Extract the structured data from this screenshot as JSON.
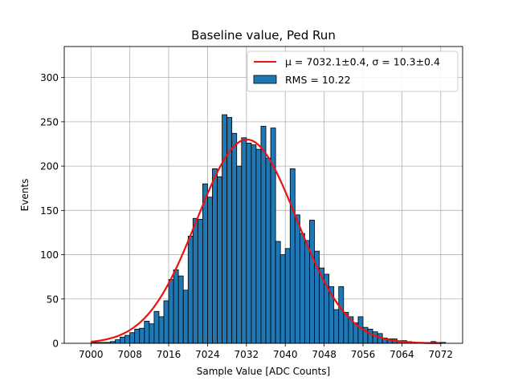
{
  "chart_data": {
    "type": "bar",
    "title": "Baseline value, Ped Run",
    "xlabel": "Sample Value [ADC Counts]",
    "ylabel": "Events",
    "xlim": [
      6994.5,
      7076.5
    ],
    "ylim": [
      0,
      335
    ],
    "xticks": [
      "7000",
      "7008",
      "7016",
      "7024",
      "7032",
      "7040",
      "7048",
      "7056",
      "7064",
      "7072"
    ],
    "yticks": [
      "0",
      "50",
      "100",
      "150",
      "200",
      "250",
      "300"
    ],
    "grid": true,
    "legend": {
      "placement": "top-right",
      "fit_label": "μ = 7032.1±0.4, σ = 10.3±0.4",
      "hist_label": "RMS = 10.22"
    },
    "histogram": {
      "name": "RMS = 10.22",
      "color": "#1f77b4",
      "edgecolor": "#000000",
      "bin_width": 1,
      "bins_start": 7000,
      "values": [
        1,
        1,
        1,
        1,
        2,
        4,
        7,
        9,
        12,
        16,
        17,
        25,
        22,
        36,
        30,
        48,
        72,
        83,
        76,
        60,
        121,
        141,
        140,
        180,
        165,
        197,
        188,
        258,
        255,
        237,
        200,
        232,
        226,
        224,
        219,
        245,
        209,
        243,
        115,
        100,
        107,
        197,
        145,
        124,
        116,
        139,
        104,
        85,
        78,
        64,
        38,
        64,
        35,
        30,
        23,
        30,
        18,
        16,
        13,
        11,
        6,
        5,
        5,
        3,
        3,
        2,
        1,
        1,
        1,
        1,
        2,
        1,
        1
      ]
    },
    "fit": {
      "name": "μ = 7032.1±0.4, σ = 10.3±0.4",
      "color": "#ee1111",
      "mu": 7032.1,
      "sigma": 10.3,
      "amplitude": 230,
      "x_range": [
        7000,
        7072
      ]
    }
  }
}
